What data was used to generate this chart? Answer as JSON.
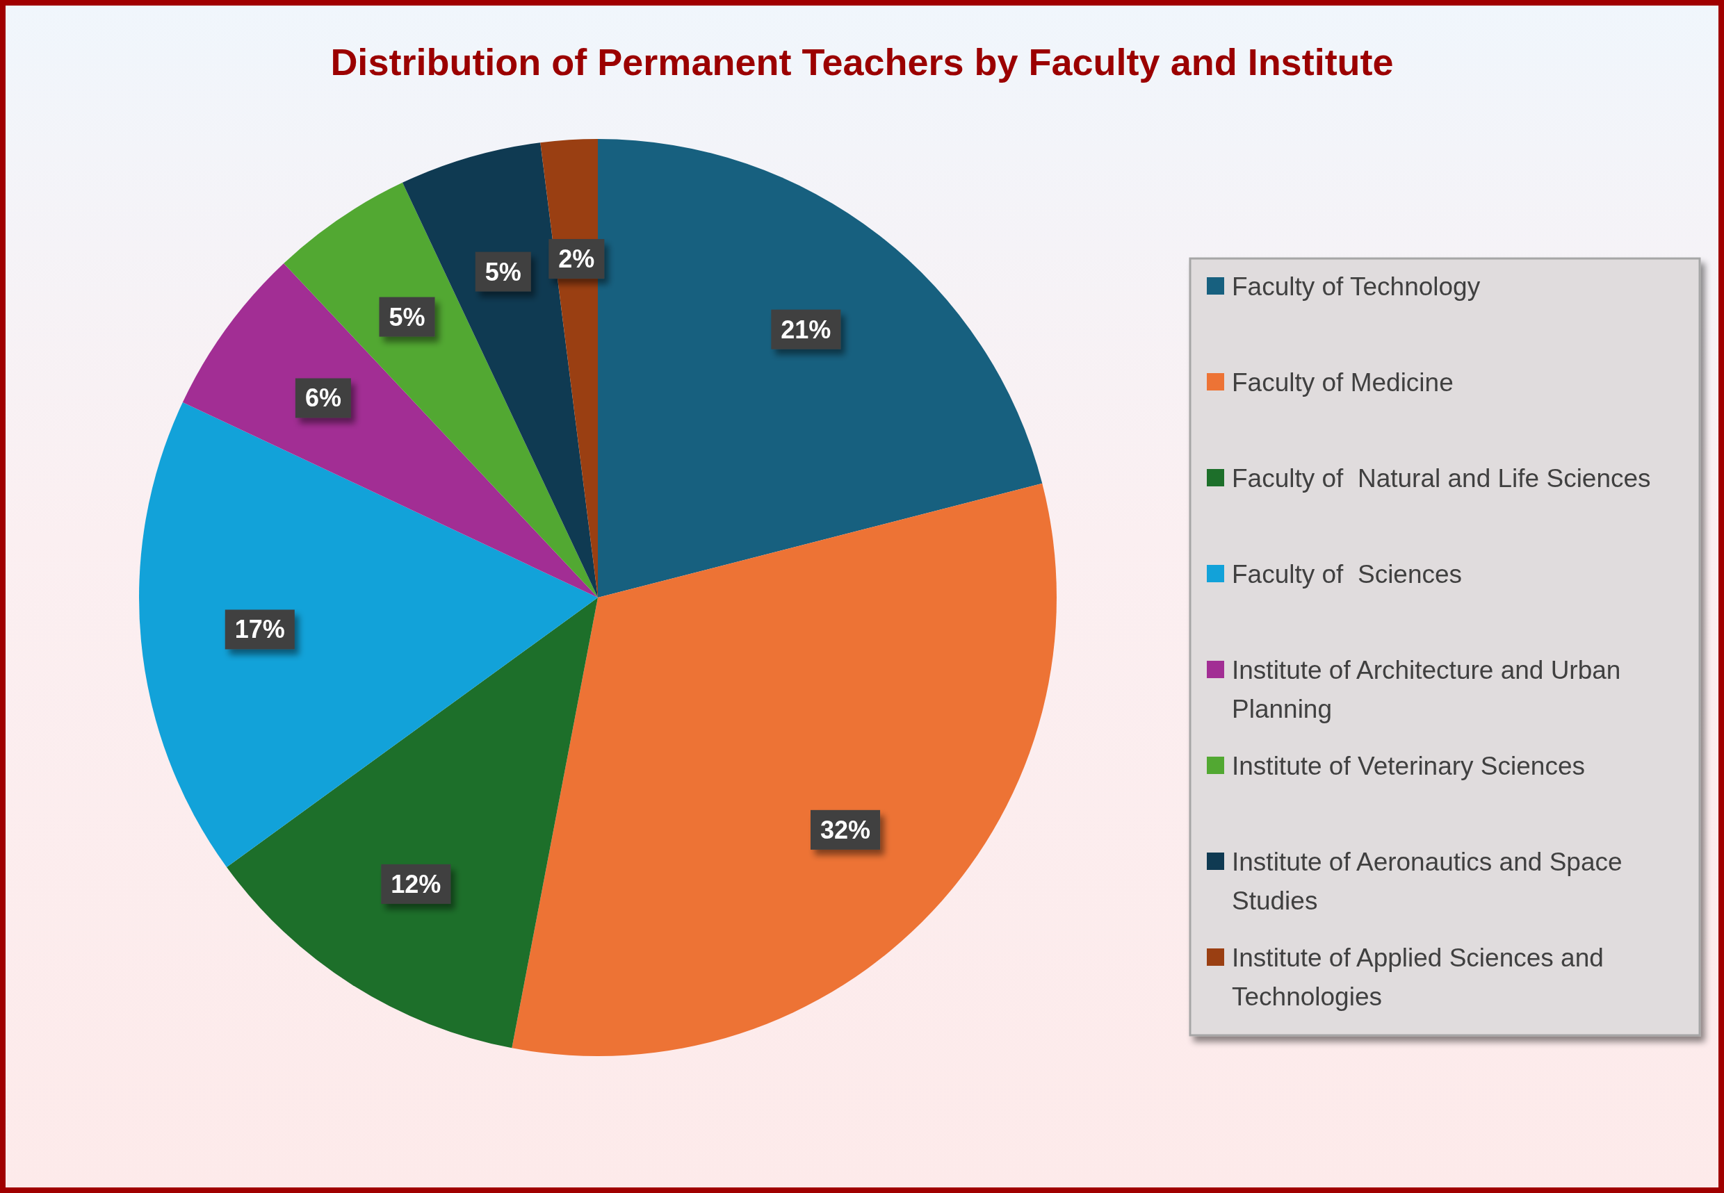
{
  "chart_data": {
    "type": "pie",
    "title": "Distribution of Permanent Teachers by Faculty and Institute",
    "categories": [
      "Faculty of Technology",
      "Faculty of Medicine",
      "Faculty of  Natural and Life Sciences",
      "Faculty of  Sciences",
      "Institute of Architecture and Urban Planning",
      "Institute of Veterinary Sciences",
      "Institute of Aeronautics and Space Studies",
      "Institute of Applied Sciences and Technologies"
    ],
    "values": [
      21,
      32,
      12,
      17,
      6,
      5,
      5,
      2
    ],
    "colors": [
      "#17607f",
      "#ed7335",
      "#1d6f2a",
      "#12a2d9",
      "#a22e94",
      "#52a832",
      "#0f3a52",
      "#9a3f12"
    ],
    "value_labels": [
      "21%",
      "32%",
      "12%",
      "17%",
      "6%",
      "5%",
      "5%",
      "2%"
    ],
    "legend": "right"
  }
}
